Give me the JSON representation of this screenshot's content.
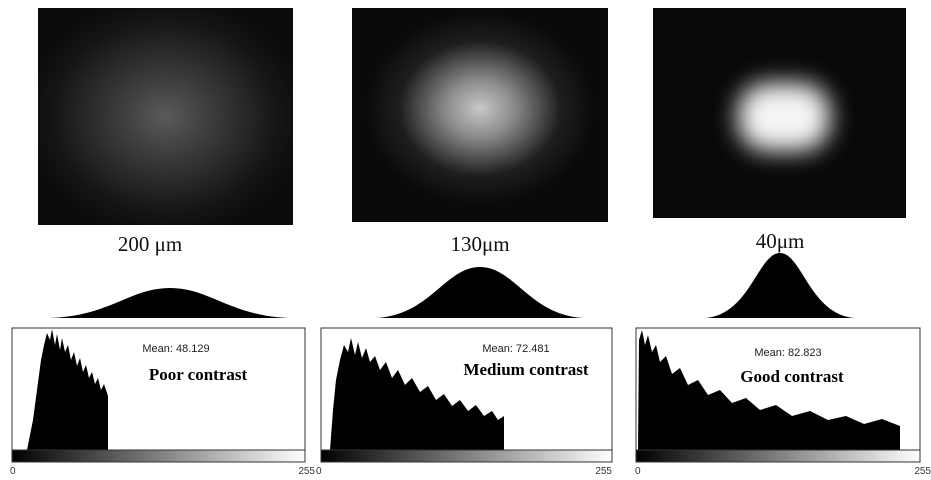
{
  "panels": [
    {
      "size_label": "200 μm",
      "mean": "Mean: 48.129",
      "contrast": "Poor contrast",
      "axis_min": 0,
      "axis_max": 255
    },
    {
      "size_label": "130μm",
      "mean": "Mean: 72.481",
      "contrast": "Medium contrast",
      "axis_min": 0,
      "axis_max": 255
    },
    {
      "size_label": "40μm",
      "mean": "Mean: 82.823",
      "contrast": "Good contrast",
      "axis_min": 0,
      "axis_max": 255
    }
  ]
}
